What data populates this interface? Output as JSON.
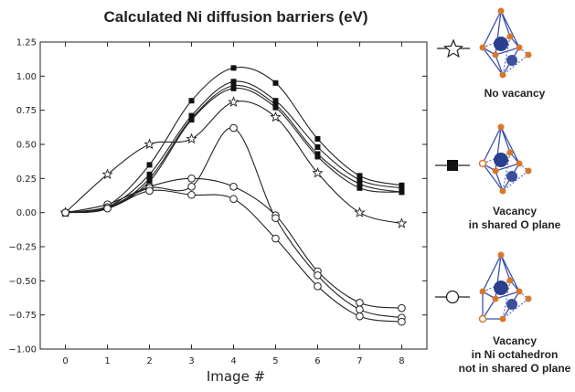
{
  "chart_data": {
    "type": "line",
    "title": "Calculated Ni diffusion barriers (eV)",
    "xlabel": "Image #",
    "ylabel": "",
    "xlim": [
      -0.6,
      8.6
    ],
    "ylim": [
      -1.0,
      1.25
    ],
    "x": [
      0,
      1,
      2,
      3,
      4,
      5,
      6,
      7,
      8
    ],
    "xticks": [
      "0",
      "1",
      "2",
      "3",
      "4",
      "5",
      "6",
      "7",
      "8"
    ],
    "yticks": [
      "1.25",
      "1.00",
      "0.75",
      "0.50",
      "0.25",
      "0.00",
      "−0.25",
      "−0.50",
      "−0.75",
      "−1.00"
    ],
    "ytick_values": [
      1.25,
      1.0,
      0.75,
      0.5,
      0.25,
      0.0,
      -0.25,
      -0.5,
      -0.75,
      -1.0
    ],
    "grid": false,
    "series": [
      {
        "group": "No vacancy",
        "marker": "star",
        "values": [
          0.0,
          0.28,
          0.5,
          0.54,
          0.81,
          0.7,
          0.29,
          0.0,
          -0.08
        ]
      },
      {
        "group": "Vacancy in shared O plane",
        "marker": "square",
        "values": [
          0.0,
          0.05,
          0.35,
          0.82,
          1.06,
          0.95,
          0.54,
          0.27,
          0.2
        ]
      },
      {
        "group": "Vacancy in shared O plane",
        "marker": "square",
        "values": [
          0.0,
          0.04,
          0.28,
          0.71,
          0.96,
          0.82,
          0.48,
          0.24,
          0.18
        ]
      },
      {
        "group": "Vacancy in shared O plane",
        "marker": "square",
        "values": [
          0.0,
          0.03,
          0.25,
          0.69,
          0.93,
          0.79,
          0.43,
          0.21,
          0.15
        ]
      },
      {
        "group": "Vacancy in shared O plane",
        "marker": "square",
        "values": [
          0.0,
          0.03,
          0.23,
          0.68,
          0.91,
          0.77,
          0.41,
          0.18,
          0.15
        ]
      },
      {
        "group": "Vacancy in Ni octahedron not in shared O plane",
        "marker": "circle",
        "values": [
          0.0,
          0.06,
          0.19,
          0.25,
          0.19,
          -0.02,
          -0.43,
          -0.66,
          -0.7
        ]
      },
      {
        "group": "Vacancy in Ni octahedron not in shared O plane",
        "marker": "circle",
        "values": [
          0.0,
          0.04,
          0.18,
          0.19,
          0.62,
          -0.04,
          -0.46,
          -0.71,
          -0.77
        ]
      },
      {
        "group": "Vacancy in Ni octahedron not in shared O plane",
        "marker": "circle",
        "values": [
          0.0,
          0.03,
          0.16,
          0.13,
          0.1,
          -0.19,
          -0.54,
          -0.76,
          -0.8
        ]
      }
    ],
    "legend": {
      "placement": "right",
      "items": [
        {
          "marker": "star",
          "lines": [
            "No vacancy"
          ]
        },
        {
          "marker": "square",
          "lines": [
            "Vacancy",
            "in shared O plane"
          ]
        },
        {
          "marker": "circle",
          "lines": [
            "Vacancy",
            "in Ni octahedron",
            "not in shared O plane"
          ]
        }
      ]
    },
    "colors": {
      "line": "#222222",
      "ni_atom": "#2a3f8f",
      "o_atom": "#d9782a",
      "bond": "#3b52b0"
    }
  }
}
